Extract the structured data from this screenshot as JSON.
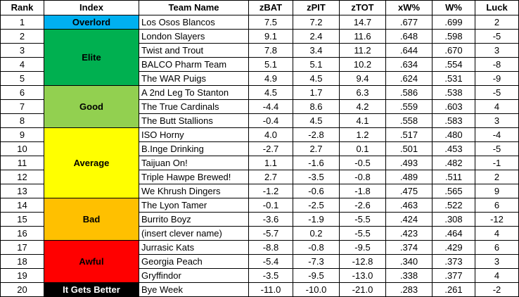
{
  "headers": [
    "Rank",
    "Index",
    "Team Name",
    "zBAT",
    "zPIT",
    "zTOT",
    "xW%",
    "W%",
    "Luck"
  ],
  "tiers": [
    {
      "label": "Overlord",
      "color": "#00b0f0",
      "text_color": "#000000",
      "span": 1
    },
    {
      "label": "Elite",
      "color": "#00b050",
      "text_color": "#000000",
      "span": 4
    },
    {
      "label": "Good",
      "color": "#92d050",
      "text_color": "#000000",
      "span": 3
    },
    {
      "label": "Average",
      "color": "#ffff00",
      "text_color": "#000000",
      "span": 5
    },
    {
      "label": "Bad",
      "color": "#ffc000",
      "text_color": "#000000",
      "span": 3
    },
    {
      "label": "Awful",
      "color": "#ff0000",
      "text_color": "#000000",
      "span": 3
    },
    {
      "label": "It Gets Better",
      "color": "#000000",
      "text_color": "#ffffff",
      "span": 1
    }
  ],
  "rows": [
    {
      "rank": "1",
      "team": "Los Osos Blancos",
      "zbat": "7.5",
      "zpit": "7.2",
      "ztot": "14.7",
      "xw": ".677",
      "w": ".699",
      "luck": "2"
    },
    {
      "rank": "2",
      "team": "London Slayers",
      "zbat": "9.1",
      "zpit": "2.4",
      "ztot": "11.6",
      "xw": ".648",
      "w": ".598",
      "luck": "-5"
    },
    {
      "rank": "3",
      "team": "Twist and Trout",
      "zbat": "7.8",
      "zpit": "3.4",
      "ztot": "11.2",
      "xw": ".644",
      "w": ".670",
      "luck": "3"
    },
    {
      "rank": "4",
      "team": "BALCO Pharm Team",
      "zbat": "5.1",
      "zpit": "5.1",
      "ztot": "10.2",
      "xw": ".634",
      "w": ".554",
      "luck": "-8"
    },
    {
      "rank": "5",
      "team": "The WAR Puigs",
      "zbat": "4.9",
      "zpit": "4.5",
      "ztot": "9.4",
      "xw": ".624",
      "w": ".531",
      "luck": "-9"
    },
    {
      "rank": "6",
      "team": "A 2nd Leg To Stanton",
      "zbat": "4.5",
      "zpit": "1.7",
      "ztot": "6.3",
      "xw": ".586",
      "w": ".538",
      "luck": "-5"
    },
    {
      "rank": "7",
      "team": "The True Cardinals",
      "zbat": "-4.4",
      "zpit": "8.6",
      "ztot": "4.2",
      "xw": ".559",
      "w": ".603",
      "luck": "4"
    },
    {
      "rank": "8",
      "team": "The Butt Stallions",
      "zbat": "-0.4",
      "zpit": "4.5",
      "ztot": "4.1",
      "xw": ".558",
      "w": ".583",
      "luck": "3"
    },
    {
      "rank": "9",
      "team": "ISO Horny",
      "zbat": "4.0",
      "zpit": "-2.8",
      "ztot": "1.2",
      "xw": ".517",
      "w": ".480",
      "luck": "-4"
    },
    {
      "rank": "10",
      "team": "B.Inge Drinking",
      "zbat": "-2.7",
      "zpit": "2.7",
      "ztot": "0.1",
      "xw": ".501",
      "w": ".453",
      "luck": "-5"
    },
    {
      "rank": "11",
      "team": "Taijuan On!",
      "zbat": "1.1",
      "zpit": "-1.6",
      "ztot": "-0.5",
      "xw": ".493",
      "w": ".482",
      "luck": "-1"
    },
    {
      "rank": "12",
      "team": "Triple Hawpe Brewed!",
      "zbat": "2.7",
      "zpit": "-3.5",
      "ztot": "-0.8",
      "xw": ".489",
      "w": ".511",
      "luck": "2"
    },
    {
      "rank": "13",
      "team": "We Khrush Dingers",
      "zbat": "-1.2",
      "zpit": "-0.6",
      "ztot": "-1.8",
      "xw": ".475",
      "w": ".565",
      "luck": "9"
    },
    {
      "rank": "14",
      "team": "The Lyon Tamer",
      "zbat": "-0.1",
      "zpit": "-2.5",
      "ztot": "-2.6",
      "xw": ".463",
      "w": ".522",
      "luck": "6"
    },
    {
      "rank": "15",
      "team": "Burrito Boyz",
      "zbat": "-3.6",
      "zpit": "-1.9",
      "ztot": "-5.5",
      "xw": ".424",
      "w": ".308",
      "luck": "-12"
    },
    {
      "rank": "16",
      "team": "(insert clever name)",
      "zbat": "-5.7",
      "zpit": "0.2",
      "ztot": "-5.5",
      "xw": ".423",
      "w": ".464",
      "luck": "4"
    },
    {
      "rank": "17",
      "team": "Jurrasic Kats",
      "zbat": "-8.8",
      "zpit": "-0.8",
      "ztot": "-9.5",
      "xw": ".374",
      "w": ".429",
      "luck": "6"
    },
    {
      "rank": "18",
      "team": "Georgia Peach",
      "zbat": "-5.4",
      "zpit": "-7.3",
      "ztot": "-12.8",
      "xw": ".340",
      "w": ".373",
      "luck": "3"
    },
    {
      "rank": "19",
      "team": "Gryffindor",
      "zbat": "-3.5",
      "zpit": "-9.5",
      "ztot": "-13.0",
      "xw": ".338",
      "w": ".377",
      "luck": "4"
    },
    {
      "rank": "20",
      "team": "Bye Week",
      "zbat": "-11.0",
      "zpit": "-10.0",
      "ztot": "-21.0",
      "xw": ".283",
      "w": ".261",
      "luck": "-2"
    }
  ]
}
